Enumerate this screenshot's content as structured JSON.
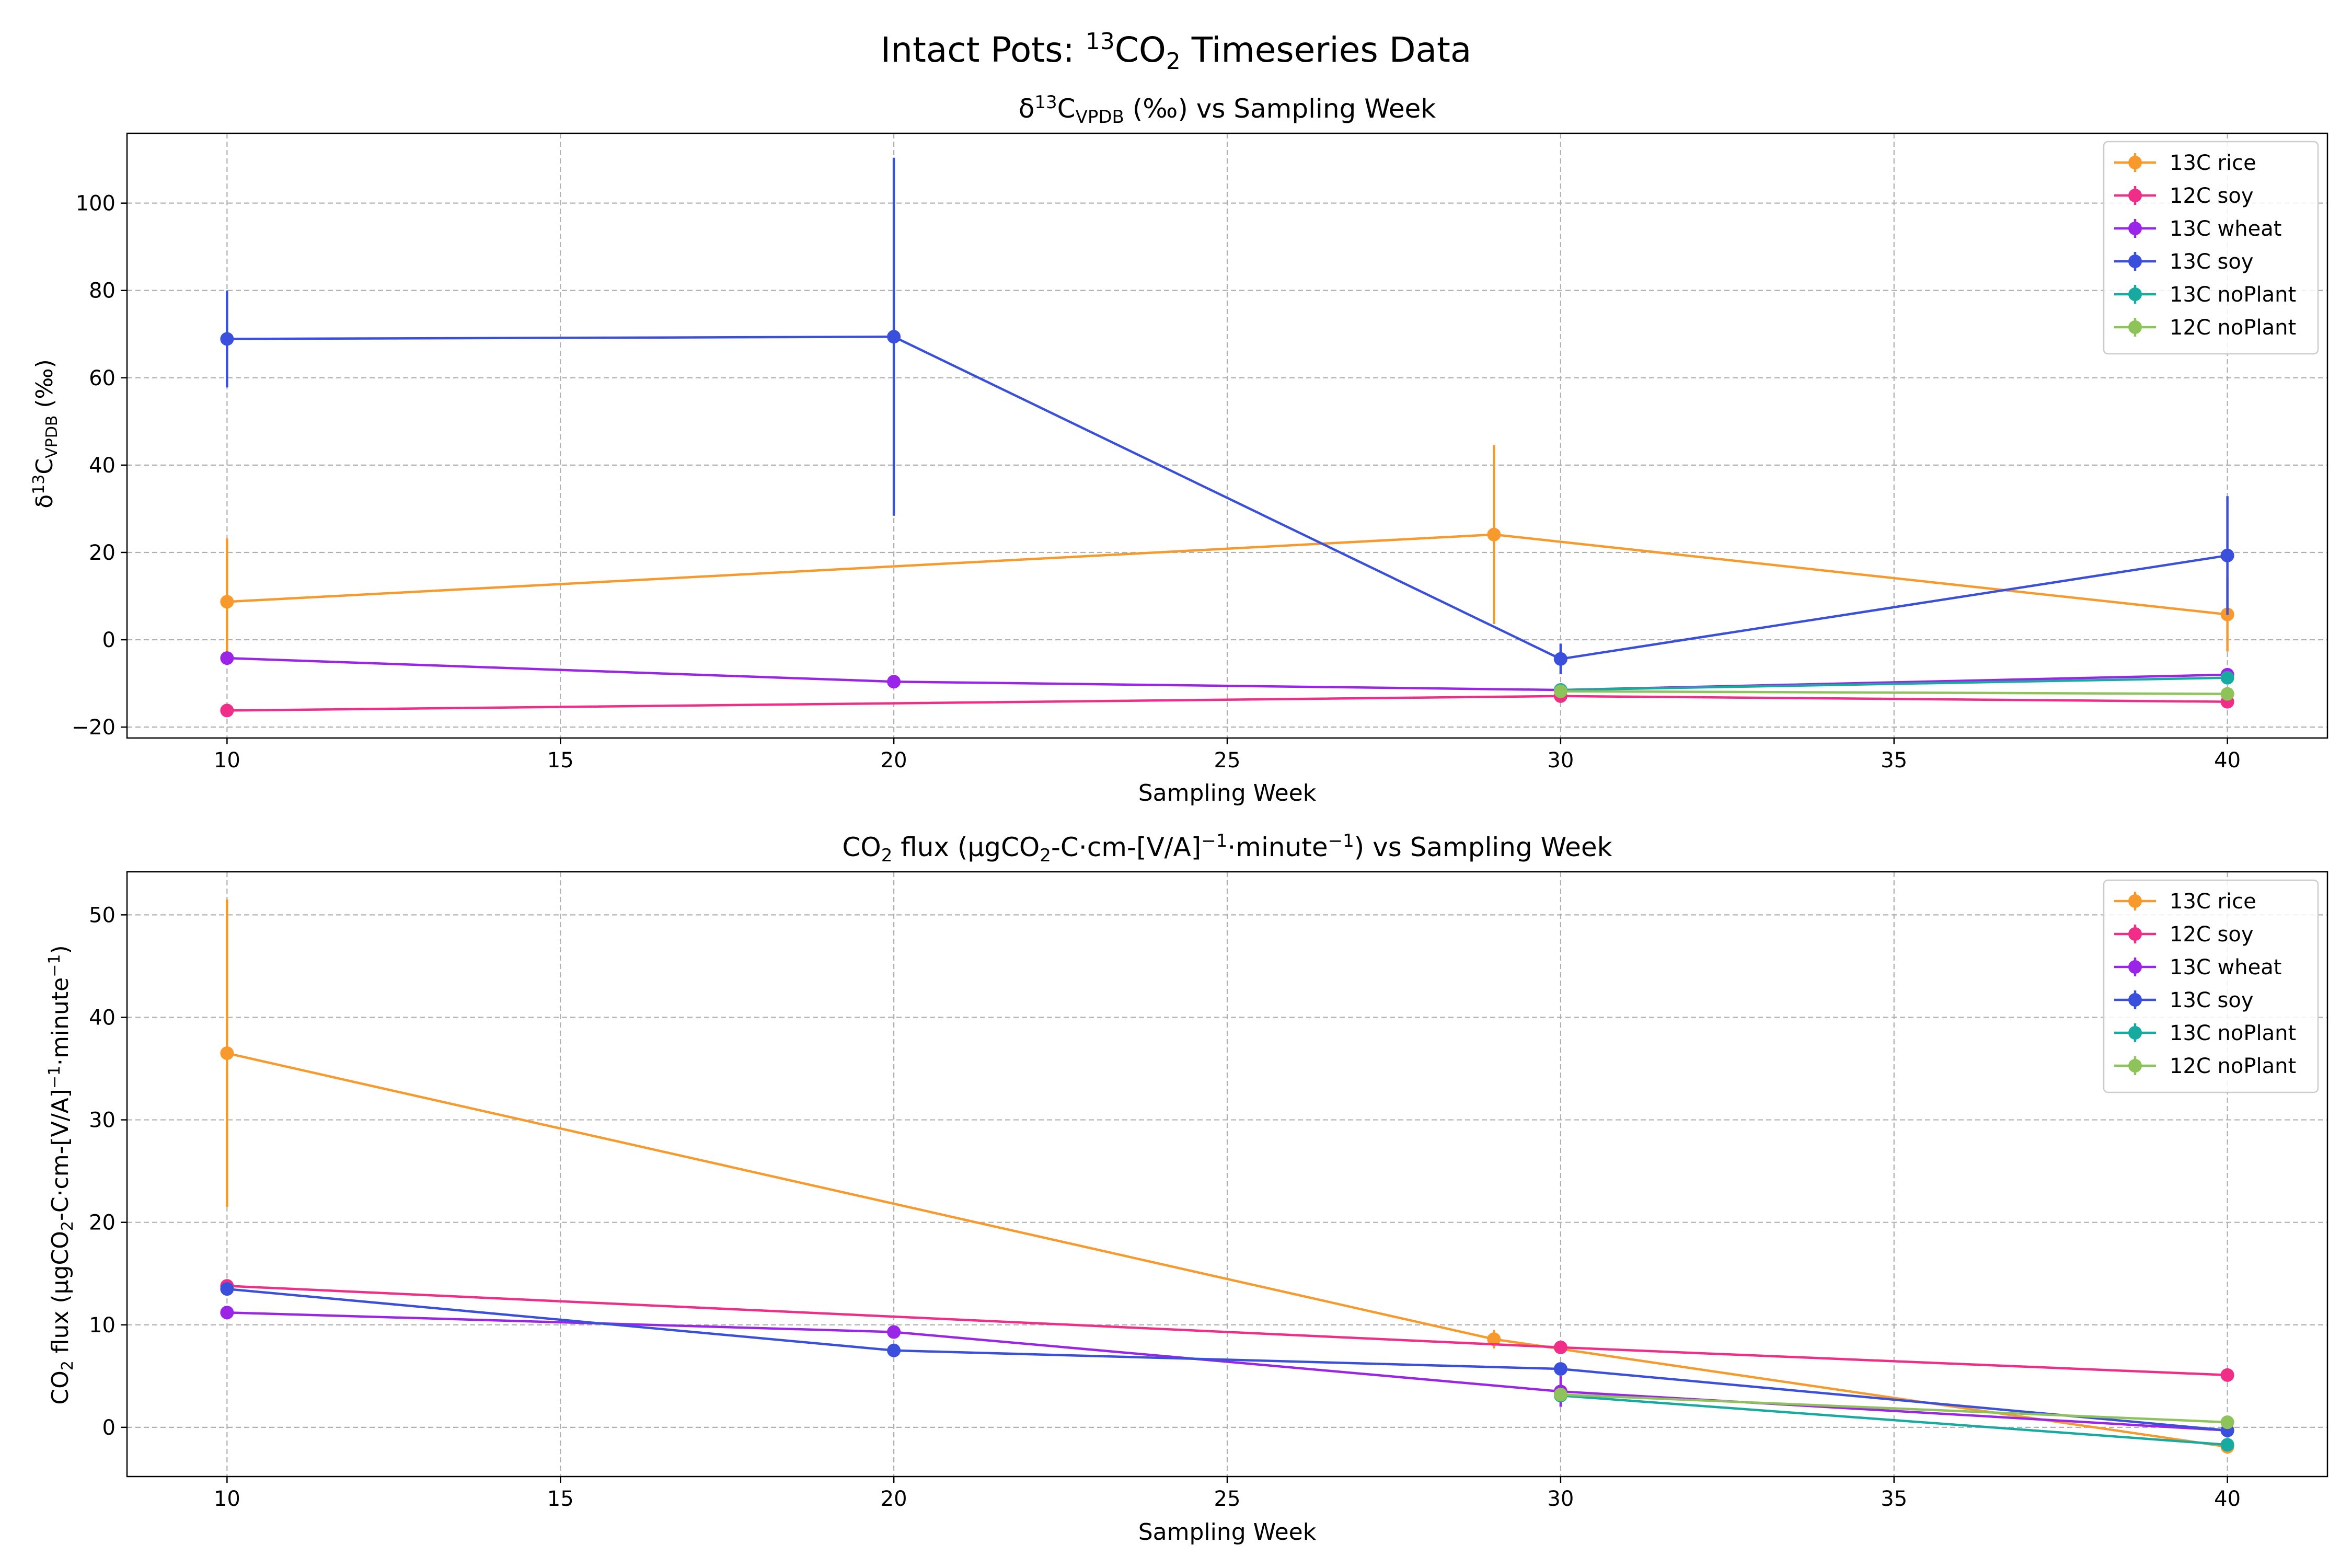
{
  "figure": {
    "suptitle_prefix": "Intact Pots: ",
    "suptitle_sup": "13",
    "suptitle_mid": "CO",
    "suptitle_sub": "2",
    "suptitle_suffix": " Timeseries Data"
  },
  "chart_data": [
    {
      "type": "line",
      "title": "δ13CVPDB (‰) vs Sampling Week",
      "title_parts": {
        "a": "δ",
        "sup": "13",
        "b": "C",
        "sub": "VPDB",
        "c": " (‰) vs Sampling Week"
      },
      "xlabel": "Sampling Week",
      "ylabel": "δ13CVPDB (‰)",
      "ylabel_parts": {
        "a": "δ",
        "sup": "13",
        "b": "C",
        "sub": "VPDB",
        "c": " (‰)"
      },
      "xlim": [
        8.5,
        41.5
      ],
      "ylim": [
        -22.5,
        116
      ],
      "xticks": [
        10,
        15,
        20,
        25,
        30,
        35,
        40
      ],
      "yticks": [
        -20,
        0,
        20,
        40,
        60,
        80,
        100
      ],
      "grid": true,
      "legend": "top-right",
      "series": [
        {
          "name": "13C rice",
          "color": "#f7992b",
          "x": [
            10,
            20,
            29,
            40
          ],
          "y": [
            8.7,
            null,
            24.1,
            5.8
          ],
          "err": [
            14.5,
            0,
            20.5,
            8.5
          ]
        },
        {
          "name": "12C soy",
          "color": "#f02d87",
          "x": [
            10,
            30,
            40
          ],
          "y": [
            -16.2,
            -12.9,
            -14.2
          ],
          "err": [
            0,
            1.2,
            0.6
          ]
        },
        {
          "name": "13C wheat",
          "color": "#9a25e8",
          "x": [
            10,
            20,
            30,
            40
          ],
          "y": [
            -4.2,
            -9.6,
            -11.5,
            -8.0
          ],
          "err": [
            0,
            0,
            0,
            1.0
          ]
        },
        {
          "name": "13C soy",
          "color": "#3a4fdc",
          "x": [
            10,
            20,
            30,
            40
          ],
          "y": [
            68.9,
            69.4,
            -4.4,
            19.3
          ],
          "err": [
            11.1,
            41.0,
            3.5,
            13.6
          ]
        },
        {
          "name": "13C noPlant",
          "color": "#17aaa0",
          "x": [
            30,
            40
          ],
          "y": [
            -11.5,
            -8.7
          ],
          "err": [
            0,
            0
          ]
        },
        {
          "name": "12C noPlant",
          "color": "#8ec35a",
          "x": [
            30,
            40
          ],
          "y": [
            -11.8,
            -12.4
          ],
          "err": [
            0,
            0.6
          ]
        }
      ]
    },
    {
      "type": "line",
      "title": "CO2 flux (μgCO2-C⋅cm-[V/A]−1⋅minute−1) vs Sampling Week",
      "title_parts": {
        "a": "CO",
        "sub": "2",
        "b": " flux (μgCO",
        "sub2": "2",
        "c": "-C⋅cm-[V/A]",
        "sup": "−1",
        "d": "⋅minute",
        "sup2": "−1",
        "e": ") vs Sampling Week"
      },
      "xlabel": "Sampling Week",
      "ylabel": "CO2 flux (μgCO2-C⋅cm-[V/A]−1⋅minute−1)",
      "ylabel_parts": {
        "a": "CO",
        "sub": "2",
        "b": " flux (μgCO",
        "sub2": "2",
        "c": "-C⋅cm-[V/A]",
        "sup": "−1",
        "d": "⋅minute",
        "sup2": "−1",
        "e": ")"
      },
      "xlim": [
        8.5,
        41.5
      ],
      "ylim": [
        -4.8,
        54.2
      ],
      "xticks": [
        10,
        15,
        20,
        25,
        30,
        35,
        40
      ],
      "yticks": [
        0,
        10,
        20,
        30,
        40,
        50
      ],
      "grid": true,
      "legend": "top-right",
      "series": [
        {
          "name": "13C rice",
          "color": "#f7992b",
          "x": [
            10,
            29,
            40
          ],
          "y": [
            36.5,
            8.6,
            -1.9
          ],
          "err": [
            15.0,
            0.9,
            0
          ]
        },
        {
          "name": "12C soy",
          "color": "#f02d87",
          "x": [
            10,
            30,
            40
          ],
          "y": [
            13.8,
            7.8,
            5.1
          ],
          "err": [
            0,
            0,
            0
          ]
        },
        {
          "name": "13C wheat",
          "color": "#9a25e8",
          "x": [
            10,
            20,
            30,
            40
          ],
          "y": [
            11.2,
            9.3,
            3.5,
            -0.3
          ],
          "err": [
            0,
            0,
            1.5,
            0
          ]
        },
        {
          "name": "13C soy",
          "color": "#3a4fdc",
          "x": [
            10,
            20,
            30,
            40
          ],
          "y": [
            13.5,
            7.5,
            5.7,
            -0.3
          ],
          "err": [
            0,
            0,
            0,
            0.7
          ]
        },
        {
          "name": "13C noPlant",
          "color": "#17aaa0",
          "x": [
            30,
            40
          ],
          "y": [
            3.1,
            -1.7
          ],
          "err": [
            0,
            0
          ]
        },
        {
          "name": "12C noPlant",
          "color": "#8ec35a",
          "x": [
            30,
            40
          ],
          "y": [
            3.2,
            0.5
          ],
          "err": [
            0,
            0
          ]
        }
      ]
    }
  ]
}
